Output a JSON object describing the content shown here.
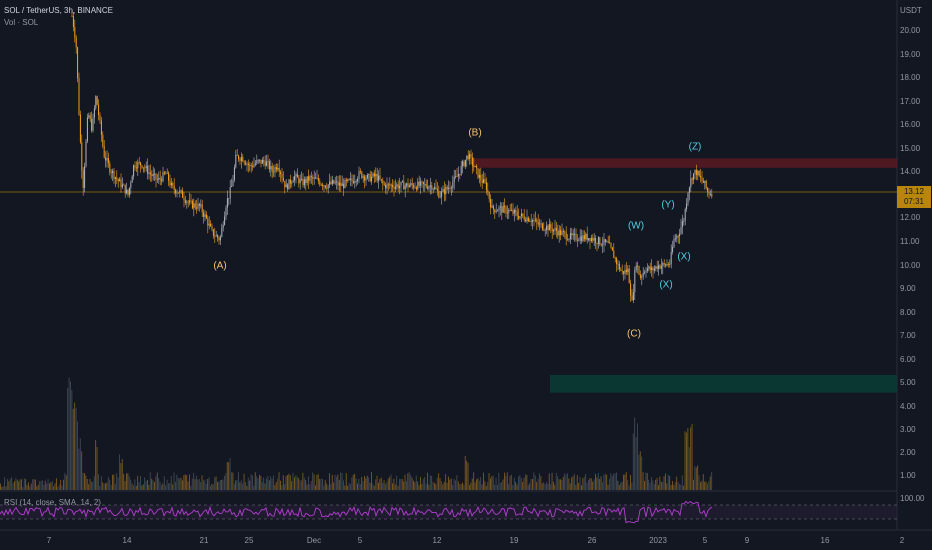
{
  "header": {
    "symbol_line": "SOL / TetherUS, 3h, BINANCE",
    "volume_label": "Vol · SOL"
  },
  "price_axis": {
    "currency": "USDT",
    "labels": [
      "20.00",
      "19.00",
      "18.00",
      "17.00",
      "16.00",
      "15.00",
      "14.00",
      "12.00",
      "11.00",
      "10.00",
      "9.00",
      "8.00",
      "7.00",
      "6.00",
      "5.00",
      "4.00",
      "3.00",
      "2.00",
      "1.00",
      "100.00"
    ]
  },
  "current_price": {
    "value": "13.12",
    "countdown": "07:31"
  },
  "time_axis": {
    "labels": [
      "7",
      "14",
      "21",
      "25",
      "Dec",
      "5",
      "12",
      "19",
      "26",
      "2023",
      "5",
      "9",
      "16",
      "2"
    ]
  },
  "wave_labels": [
    {
      "text": "(A)",
      "color": "orange"
    },
    {
      "text": "(B)",
      "color": "orange"
    },
    {
      "text": "(C)",
      "color": "orange"
    },
    {
      "text": "(W)",
      "color": "cyan"
    },
    {
      "text": "(X)",
      "color": "cyan"
    },
    {
      "text": "(Y)",
      "color": "cyan"
    },
    {
      "text": "(X)",
      "color": "cyan"
    },
    {
      "text": "(Z)",
      "color": "cyan"
    }
  ],
  "rsi": {
    "label": "RSI (14, close, SMA, 14, 2)"
  },
  "colors": {
    "background": "#131722",
    "candle": "#f7a21b",
    "resistance_zone": "#5b1a22",
    "support_zone": "#0b3b34",
    "rsi_line": "#b33fd1",
    "price_line": "#b8860b"
  }
}
